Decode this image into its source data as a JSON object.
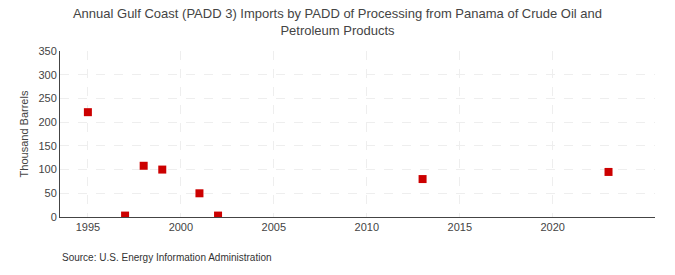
{
  "chart_data": {
    "type": "scatter",
    "title": "Annual Gulf Coast (PADD 3) Imports by PADD of Processing from Panama of Crude Oil and\nPetroleum Products",
    "ylabel": "Thousand Barrels",
    "source": "Source: U.S. Energy Information Administration",
    "x": [
      1995,
      1997,
      1998,
      1999,
      2001,
      2002,
      2013,
      2023
    ],
    "values": [
      221,
      3,
      108,
      100,
      50,
      3,
      80,
      95
    ],
    "color": "#cc0000",
    "marker": "square",
    "xlim": [
      1993.5,
      2025.5
    ],
    "ylim": [
      0,
      350
    ],
    "xticks": [
      1995,
      2000,
      2005,
      2010,
      2015,
      2020
    ],
    "yticks": [
      0,
      50,
      100,
      150,
      200,
      250,
      300,
      350
    ],
    "grid": true
  }
}
